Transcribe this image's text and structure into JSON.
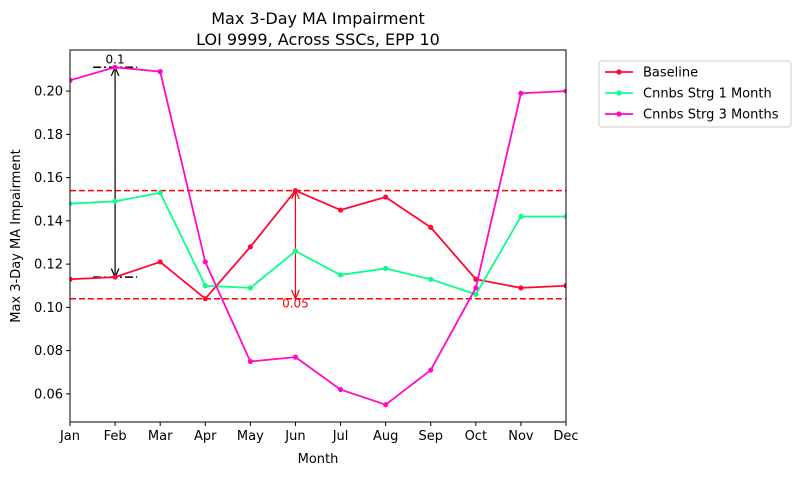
{
  "chart_data": {
    "type": "line",
    "title": "Max 3-Day MA Impairment",
    "subtitle": "LOI 9999, Across SSCs, EPP 10",
    "xlabel": "Month",
    "ylabel": "Max 3-Day MA Impairment",
    "categories": [
      "Jan",
      "Feb",
      "Mar",
      "Apr",
      "May",
      "Jun",
      "Jul",
      "Aug",
      "Sep",
      "Oct",
      "Nov",
      "Dec"
    ],
    "ylim": [
      0.047,
      0.219
    ],
    "yticks": [
      0.06,
      0.08,
      0.1,
      0.12,
      0.14,
      0.16,
      0.18,
      0.2
    ],
    "ytick_labels": [
      "0.06",
      "0.08",
      "0.10",
      "0.12",
      "0.14",
      "0.16",
      "0.18",
      "0.20"
    ],
    "grid": false,
    "legend_position": "outside-top-right",
    "series": [
      {
        "name": "Baseline",
        "color": "#ff0a36",
        "values": [
          0.113,
          0.114,
          0.121,
          0.104,
          0.128,
          0.154,
          0.145,
          0.151,
          0.137,
          0.113,
          0.109,
          0.11
        ]
      },
      {
        "name": "Cnnbs Strg 1 Month",
        "color": "#0aff8a",
        "values": [
          0.148,
          0.149,
          0.153,
          0.11,
          0.109,
          0.126,
          0.115,
          0.118,
          0.113,
          0.106,
          0.142,
          0.142
        ]
      },
      {
        "name": "Cnnbs Strg 3 Months",
        "color": "#ff0ac8",
        "values": [
          0.205,
          0.211,
          0.209,
          0.121,
          0.075,
          0.077,
          0.062,
          0.055,
          0.071,
          0.109,
          0.199,
          0.2
        ]
      }
    ],
    "reference_lines": [
      {
        "y": 0.154,
        "color": "#ff0000",
        "style": "dashed"
      },
      {
        "y": 0.104,
        "color": "#ff0000",
        "style": "dashed"
      }
    ],
    "annotations": [
      {
        "label": "0.1",
        "x": "Feb",
        "y_from": 0.114,
        "y_to": 0.211,
        "color": "#000000"
      },
      {
        "label": "0.05",
        "x": "Jun",
        "y_from": 0.104,
        "y_to": 0.154,
        "color": "#ff0000"
      }
    ]
  }
}
